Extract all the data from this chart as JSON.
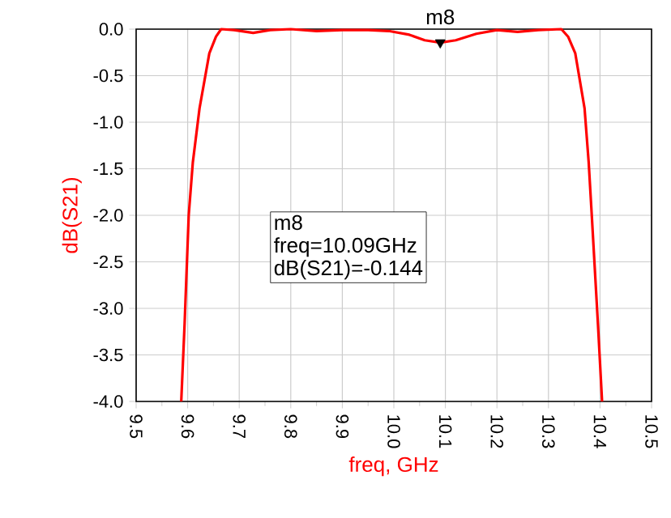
{
  "chart_data": {
    "type": "line",
    "xlabel": "freq, GHz",
    "ylabel": "dB(S21)",
    "xlim": [
      9.5,
      10.5
    ],
    "ylim": [
      -4.0,
      0.0
    ],
    "xticks": [
      {
        "value": 9.5,
        "label": "9.5"
      },
      {
        "value": 9.6,
        "label": "9.6"
      },
      {
        "value": 9.7,
        "label": "9.7"
      },
      {
        "value": 9.8,
        "label": "9.8"
      },
      {
        "value": 9.9,
        "label": "9.9"
      },
      {
        "value": 10.0,
        "label": "10.0"
      },
      {
        "value": 10.1,
        "label": "10.1"
      },
      {
        "value": 10.2,
        "label": "10.2"
      },
      {
        "value": 10.3,
        "label": "10.3"
      },
      {
        "value": 10.4,
        "label": "10.4"
      },
      {
        "value": 10.5,
        "label": "10.5"
      }
    ],
    "yticks": [
      {
        "value": -4.0,
        "label": "-4.0"
      },
      {
        "value": -3.5,
        "label": "-3.5"
      },
      {
        "value": -3.0,
        "label": "-3.0"
      },
      {
        "value": -2.5,
        "label": "-2.5"
      },
      {
        "value": -2.0,
        "label": "-2.0"
      },
      {
        "value": -1.5,
        "label": "-1.5"
      },
      {
        "value": -1.0,
        "label": "-1.0"
      },
      {
        "value": -0.5,
        "label": "-0.5"
      },
      {
        "value": 0.0,
        "label": "0.0"
      }
    ],
    "grid": true,
    "series": [
      {
        "color": "#ff0000",
        "x": [
          9.5875,
          9.594,
          9.602,
          9.61,
          9.623,
          9.642,
          9.655,
          9.665,
          9.69,
          9.727,
          9.76,
          9.8,
          9.85,
          9.9,
          9.95,
          9.99,
          10.03,
          10.06,
          10.09,
          10.12,
          10.16,
          10.2,
          10.24,
          10.28,
          10.325,
          10.338,
          10.352,
          10.37,
          10.378,
          10.384,
          10.396,
          10.404
        ],
        "values": [
          -4.0,
          -3.17,
          -2.0,
          -1.43,
          -0.85,
          -0.26,
          -0.08,
          0.0,
          -0.01,
          -0.04,
          -0.01,
          0.0,
          -0.02,
          -0.01,
          -0.01,
          -0.02,
          -0.06,
          -0.12,
          -0.144,
          -0.12,
          -0.05,
          -0.01,
          -0.03,
          -0.01,
          0.0,
          -0.08,
          -0.26,
          -0.85,
          -1.43,
          -2.0,
          -3.17,
          -4.0
        ]
      },
      {
        "type": "scatter",
        "color": "#000000",
        "marker": "triangle",
        "x": [
          10.09
        ],
        "values": [
          -0.144
        ]
      }
    ],
    "annotations": [
      {
        "text": "m8",
        "x": 10.09,
        "y": -0.144
      },
      "m8",
      "freq=10.09GHz",
      "dB(S21)=-0.144"
    ]
  }
}
